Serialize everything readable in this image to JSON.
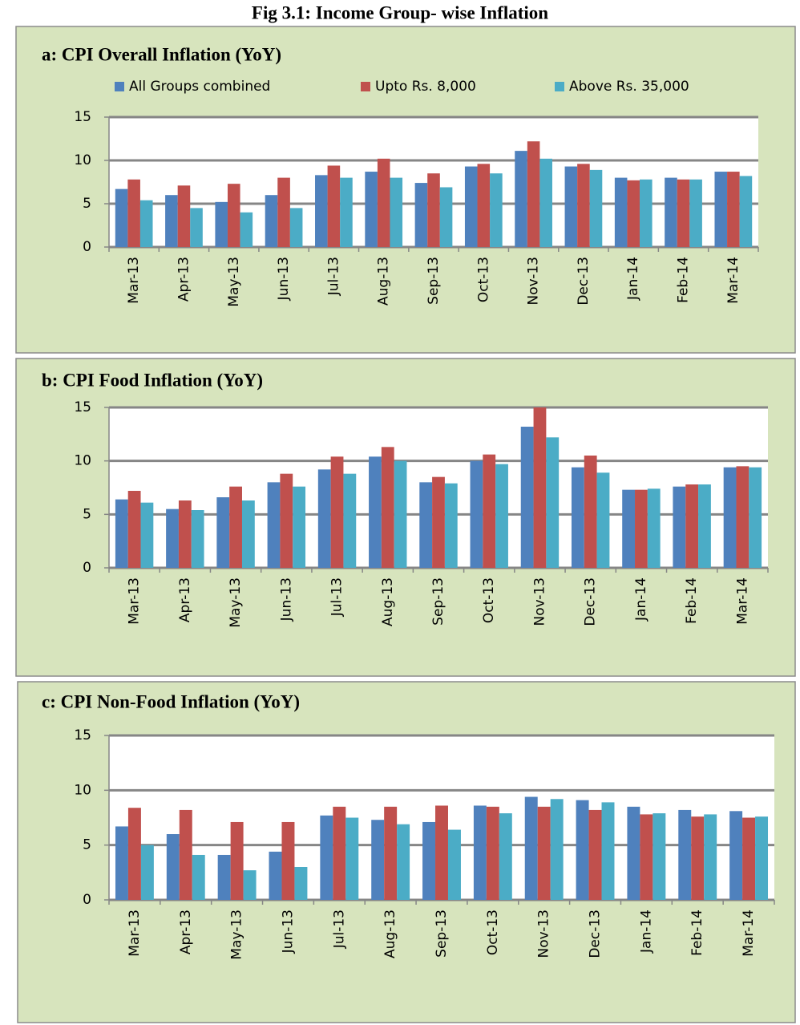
{
  "title": "Fig 3.1: Income Group- wise Inflation",
  "chart_data": [
    {
      "type": "bar",
      "title": "a: CPI Overall Inflation (YoY)",
      "legend": true,
      "grid": true,
      "categories": [
        "Mar-13",
        "Apr-13",
        "May-13",
        "Jun-13",
        "Jul-13",
        "Aug-13",
        "Sep-13",
        "Oct-13",
        "Nov-13",
        "Dec-13",
        "Jan-14",
        "Feb-14",
        "Mar-14"
      ],
      "ylim": [
        0,
        15
      ],
      "yticks": [
        0,
        5,
        10,
        15
      ],
      "series": [
        {
          "name": "All Groups combined",
          "color": "#4f81bd",
          "values": [
            6.7,
            6.0,
            5.2,
            6.0,
            8.3,
            8.7,
            7.4,
            9.3,
            11.1,
            9.3,
            8.0,
            8.0,
            8.7
          ]
        },
        {
          "name": "Upto Rs. 8,000",
          "color": "#c0504d",
          "values": [
            7.8,
            7.1,
            7.3,
            8.0,
            9.4,
            10.2,
            8.5,
            9.6,
            12.2,
            9.6,
            7.7,
            7.8,
            8.7
          ]
        },
        {
          "name": "Above Rs. 35,000",
          "color": "#4bacc6",
          "values": [
            5.4,
            4.5,
            4.0,
            4.5,
            8.0,
            8.0,
            6.9,
            8.5,
            10.2,
            8.9,
            7.8,
            7.8,
            8.2
          ]
        }
      ]
    },
    {
      "type": "bar",
      "title": "b: CPI Food Inflation (YoY)",
      "legend": false,
      "grid": true,
      "categories": [
        "Mar-13",
        "Apr-13",
        "May-13",
        "Jun-13",
        "Jul-13",
        "Aug-13",
        "Sep-13",
        "Oct-13",
        "Nov-13",
        "Dec-13",
        "Jan-14",
        "Feb-14",
        "Mar-14"
      ],
      "ylim": [
        0,
        15
      ],
      "yticks": [
        0,
        5,
        10,
        15
      ],
      "series": [
        {
          "color": "#4f81bd",
          "values": [
            6.4,
            5.5,
            6.6,
            8.0,
            9.2,
            10.4,
            8.0,
            10.0,
            13.2,
            9.4,
            7.3,
            7.6,
            9.4
          ]
        },
        {
          "color": "#c0504d",
          "values": [
            7.2,
            6.3,
            7.6,
            8.8,
            10.4,
            11.3,
            8.5,
            10.6,
            15.0,
            10.5,
            7.3,
            7.8,
            9.5
          ]
        },
        {
          "color": "#4bacc6",
          "values": [
            6.1,
            5.4,
            6.3,
            7.6,
            8.8,
            10.0,
            7.9,
            9.7,
            12.2,
            8.9,
            7.4,
            7.8,
            9.4
          ]
        }
      ]
    },
    {
      "type": "bar",
      "title": "c: CPI Non-Food Inflation (YoY)",
      "legend": false,
      "grid": true,
      "categories": [
        "Mar-13",
        "Apr-13",
        "May-13",
        "Jun-13",
        "Jul-13",
        "Aug-13",
        "Sep-13",
        "Oct-13",
        "Nov-13",
        "Dec-13",
        "Jan-14",
        "Feb-14",
        "Mar-14"
      ],
      "ylim": [
        0,
        15
      ],
      "yticks": [
        0,
        5,
        10,
        15
      ],
      "series": [
        {
          "color": "#4f81bd",
          "values": [
            6.7,
            6.0,
            4.1,
            4.4,
            7.7,
            7.3,
            7.1,
            8.6,
            9.4,
            9.1,
            8.5,
            8.2,
            8.1
          ]
        },
        {
          "color": "#c0504d",
          "values": [
            8.4,
            8.2,
            7.1,
            7.1,
            8.5,
            8.5,
            8.6,
            8.5,
            8.5,
            8.2,
            7.8,
            7.6,
            7.5
          ]
        },
        {
          "color": "#4bacc6",
          "values": [
            5.0,
            4.1,
            2.7,
            3.0,
            7.5,
            6.9,
            6.4,
            7.9,
            9.2,
            8.9,
            7.9,
            7.8,
            7.6
          ]
        }
      ]
    }
  ]
}
